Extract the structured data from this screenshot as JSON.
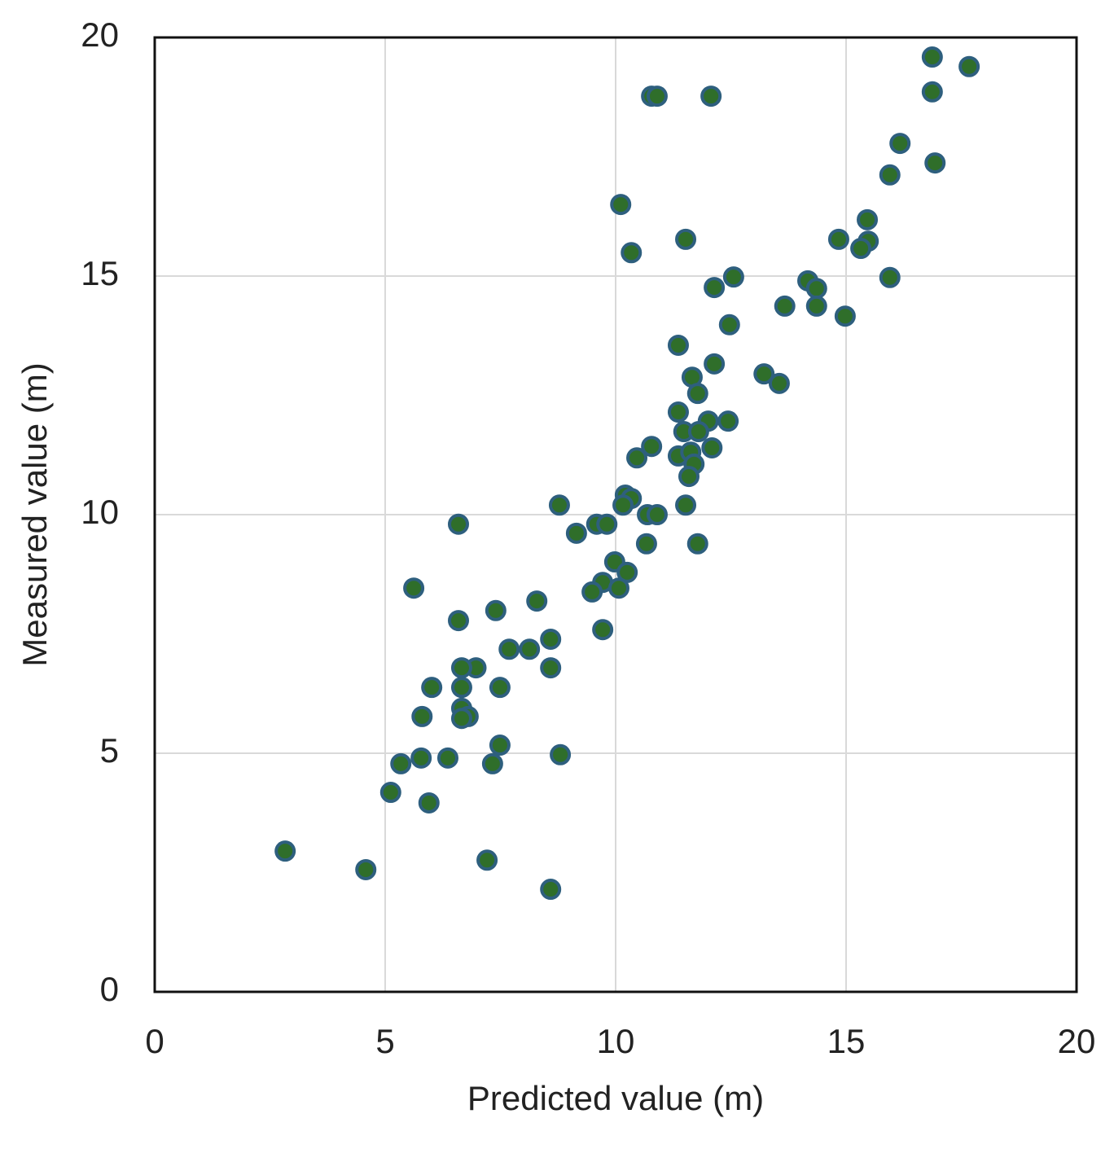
{
  "chart_data": {
    "type": "scatter",
    "x_label": "Predicted value (m)",
    "y_label": "Measured value (m)",
    "xlim": [
      0,
      20
    ],
    "ylim": [
      0,
      20
    ],
    "xticks": [
      0,
      5,
      10,
      15,
      20
    ],
    "yticks": [
      0,
      5,
      10,
      15,
      20
    ],
    "grid": true,
    "series": [
      {
        "color": "#2f6e2a",
        "x": [
          16.87,
          17.67,
          16.87,
          10.78,
          10.9,
          12.07,
          16.17,
          16.93,
          15.95,
          10.11,
          15.46,
          11.52,
          14.84,
          15.48,
          15.32,
          10.34,
          12.56,
          12.14,
          14.17,
          14.36,
          15.95,
          13.67,
          14.36,
          14.98,
          12.47,
          11.36,
          12.14,
          13.22,
          13.55,
          11.66,
          11.78,
          11.36,
          12.01,
          12.44,
          11.48,
          11.8,
          10.78,
          12.09,
          10.46,
          11.36,
          11.63,
          11.7,
          11.59,
          10.21,
          10.34,
          10.16,
          11.52,
          8.78,
          10.69,
          10.9,
          6.59,
          9.59,
          9.81,
          9.15,
          10.67,
          11.78,
          9.98,
          10.25,
          9.72,
          9.49,
          10.07,
          5.62,
          8.29,
          7.4,
          6.59,
          8.59,
          9.72,
          7.69,
          8.13,
          6.97,
          6.66,
          8.59,
          6.01,
          6.66,
          7.49,
          6.66,
          5.8,
          6.8,
          6.66,
          7.49,
          5.78,
          6.36,
          5.34,
          7.33,
          8.8,
          5.12,
          5.95,
          2.83,
          4.58,
          7.21,
          8.59
        ],
        "y": [
          19.59,
          19.39,
          18.86,
          18.77,
          18.77,
          18.77,
          17.78,
          17.37,
          17.12,
          16.5,
          16.18,
          15.77,
          15.77,
          15.73,
          15.58,
          15.49,
          14.98,
          14.76,
          14.9,
          14.74,
          14.97,
          14.37,
          14.37,
          14.16,
          13.98,
          13.55,
          13.16,
          12.95,
          12.75,
          12.88,
          12.54,
          12.15,
          11.96,
          11.96,
          11.74,
          11.74,
          11.43,
          11.4,
          11.19,
          11.23,
          11.31,
          11.06,
          10.8,
          10.41,
          10.34,
          10.2,
          10.2,
          10.2,
          10.0,
          10.0,
          9.8,
          9.8,
          9.8,
          9.61,
          9.39,
          9.39,
          9.01,
          8.79,
          8.58,
          8.38,
          8.46,
          8.46,
          8.19,
          7.99,
          7.78,
          7.39,
          7.59,
          7.18,
          7.18,
          6.79,
          6.79,
          6.79,
          6.38,
          6.38,
          6.38,
          5.94,
          5.77,
          5.77,
          5.73,
          5.17,
          4.9,
          4.9,
          4.78,
          4.78,
          4.97,
          4.18,
          3.96,
          2.95,
          2.56,
          2.76,
          2.15
        ]
      }
    ]
  }
}
